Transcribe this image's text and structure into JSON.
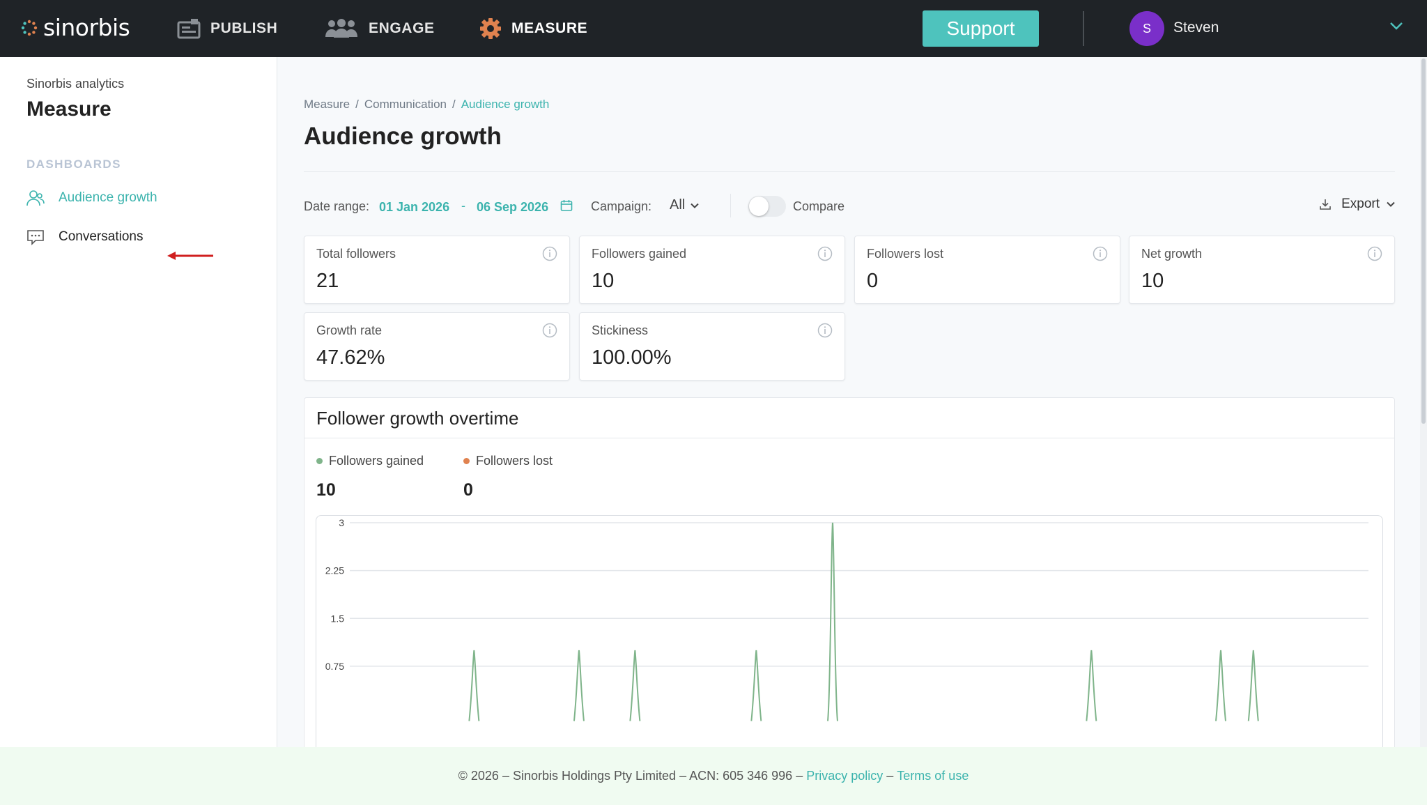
{
  "brand": {
    "name": "sinorbis"
  },
  "nav": {
    "items": [
      {
        "label": "PUBLISH",
        "icon": "publish-icon"
      },
      {
        "label": "ENGAGE",
        "icon": "people-icon"
      },
      {
        "label": "MEASURE",
        "icon": "gear-icon",
        "active": true
      }
    ],
    "support_label": "Support",
    "user": {
      "initial": "S",
      "name": "Steven"
    }
  },
  "sidebar": {
    "subtitle": "Sinorbis analytics",
    "title": "Measure",
    "section": "DASHBOARDS",
    "items": [
      {
        "label": "Audience growth",
        "icon": "users-icon",
        "active": true
      },
      {
        "label": "Conversations",
        "icon": "chat-icon"
      }
    ]
  },
  "breadcrumb": [
    "Measure",
    "Communication",
    "Audience growth"
  ],
  "page_title": "Audience growth",
  "filters": {
    "date_range_label": "Date range:",
    "date_from": "01 Jan 2026",
    "date_sep": "-",
    "date_to": "06 Sep 2026",
    "campaign_label": "Campaign:",
    "campaign_value": "All",
    "compare_label": "Compare",
    "compare_on": false,
    "export_label": "Export"
  },
  "metrics": [
    {
      "label": "Total followers",
      "value": "21"
    },
    {
      "label": "Followers gained",
      "value": "10"
    },
    {
      "label": "Followers lost",
      "value": "0"
    },
    {
      "label": "Net growth",
      "value": "10"
    },
    {
      "label": "Growth rate",
      "value": "47.62%"
    },
    {
      "label": "Stickiness",
      "value": "100.00%"
    }
  ],
  "chart": {
    "title": "Follower growth overtime",
    "legend": [
      {
        "label": "Followers gained",
        "value": "10",
        "color": "#7fb48a"
      },
      {
        "label": "Followers lost",
        "value": "0",
        "color": "#e0824f"
      }
    ]
  },
  "chart_data": {
    "type": "line",
    "x_range": [
      "01 Jan 2026",
      "06 Sep 2026"
    ],
    "ylim": [
      0,
      3
    ],
    "yticks": [
      "3",
      "2.25",
      "1.5",
      "0.75"
    ],
    "grid": true,
    "series": [
      {
        "name": "Followers gained",
        "color": "#7fb48a",
        "points": [
          {
            "x": 0.122,
            "y": 1
          },
          {
            "x": 0.225,
            "y": 1
          },
          {
            "x": 0.28,
            "y": 1
          },
          {
            "x": 0.399,
            "y": 1
          },
          {
            "x": 0.474,
            "y": 3
          },
          {
            "x": 0.728,
            "y": 1
          },
          {
            "x": 0.855,
            "y": 1
          },
          {
            "x": 0.887,
            "y": 1
          }
        ]
      },
      {
        "name": "Followers lost",
        "color": "#e0824f",
        "points": []
      }
    ]
  },
  "footer": {
    "text": "© 2026 – Sinorbis Holdings Pty Limited – ACN: 605 346 996 –",
    "privacy": "Privacy policy",
    "sep": "–",
    "terms": "Terms of use"
  }
}
